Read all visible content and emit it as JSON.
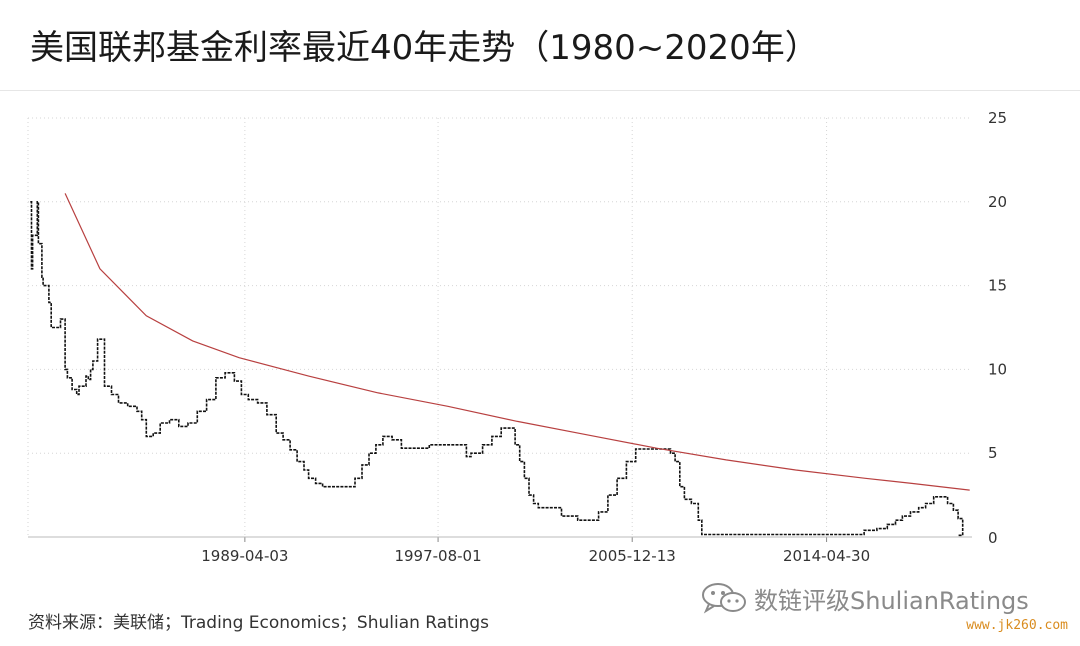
{
  "header": {
    "title": "美国联邦基金利率最近40年走势（1980~2020年）"
  },
  "chart_data": {
    "type": "line",
    "title": "",
    "xlabel": "",
    "ylabel": "",
    "x_tick_labels": [
      "1989-04-03",
      "1997-08-01",
      "2005-12-13",
      "2014-04-30"
    ],
    "x_tick_dates": [
      1989.25,
      1997.58,
      2005.95,
      2014.33
    ],
    "xlim": [
      1979.9,
      2020.6
    ],
    "y_ticks": [
      0,
      5,
      10,
      15,
      20,
      25
    ],
    "ylim": [
      0,
      25
    ],
    "grid": true,
    "y_axis_position": "right",
    "series": [
      {
        "name": "",
        "color": "#111111",
        "style": "step",
        "x": [
          1980.0,
          1980.05,
          1980.1,
          1980.3,
          1980.35,
          1980.5,
          1980.55,
          1980.8,
          1980.9,
          1981.3,
          1981.5,
          1981.6,
          1981.8,
          1982.0,
          1982.1,
          1982.4,
          1982.5,
          1982.6,
          1982.7,
          1982.9,
          1983.2,
          1983.5,
          1983.8,
          1984.2,
          1984.6,
          1984.8,
          1985.0,
          1985.3,
          1985.6,
          1986.0,
          1986.4,
          1986.8,
          1987.2,
          1987.6,
          1988.0,
          1988.4,
          1988.8,
          1989.1,
          1989.4,
          1989.8,
          1990.2,
          1990.6,
          1990.9,
          1991.2,
          1991.5,
          1991.8,
          1992.0,
          1992.3,
          1992.6,
          1993.2,
          1994.0,
          1994.3,
          1994.6,
          1994.9,
          1995.2,
          1995.6,
          1996.0,
          1996.6,
          1997.2,
          1998.0,
          1998.8,
          1999.0,
          1999.5,
          1999.9,
          2000.3,
          2000.5,
          2000.9,
          2001.1,
          2001.3,
          2001.5,
          2001.7,
          2001.9,
          2002.4,
          2002.9,
          2003.6,
          2004.2,
          2004.5,
          2004.9,
          2005.3,
          2005.7,
          2006.1,
          2006.5,
          2007.0,
          2007.6,
          2007.8,
          2008.0,
          2008.2,
          2008.5,
          2008.8,
          2008.95,
          2009.5,
          2012.0,
          2015.0,
          2015.95,
          2016.5,
          2016.95,
          2017.3,
          2017.6,
          2017.95,
          2018.3,
          2018.6,
          2018.95,
          2019.3,
          2019.55,
          2019.8,
          2020.0,
          2020.2
        ],
        "y": [
          20.0,
          16.0,
          18.0,
          20.0,
          17.5,
          15.5,
          15.0,
          14.0,
          12.5,
          13.0,
          10.0,
          9.5,
          8.8,
          8.5,
          9.0,
          9.6,
          9.4,
          10.0,
          10.5,
          11.8,
          9.0,
          8.5,
          8.0,
          7.8,
          7.5,
          7.0,
          6.0,
          6.2,
          6.8,
          7.0,
          6.6,
          6.8,
          7.5,
          8.2,
          9.5,
          9.8,
          9.3,
          8.5,
          8.2,
          8.0,
          7.3,
          6.2,
          5.8,
          5.2,
          4.5,
          4.0,
          3.5,
          3.2,
          3.0,
          3.0,
          3.5,
          4.3,
          5.0,
          5.5,
          6.0,
          5.8,
          5.3,
          5.3,
          5.5,
          5.5,
          4.8,
          5.0,
          5.5,
          6.0,
          6.5,
          6.5,
          5.5,
          4.5,
          3.5,
          2.5,
          2.0,
          1.75,
          1.75,
          1.25,
          1.0,
          1.0,
          1.5,
          2.5,
          3.5,
          4.5,
          5.25,
          5.25,
          5.25,
          5.0,
          4.5,
          3.0,
          2.25,
          2.0,
          1.0,
          0.15,
          0.15,
          0.15,
          0.15,
          0.4,
          0.5,
          0.75,
          1.0,
          1.25,
          1.5,
          1.75,
          2.0,
          2.4,
          2.4,
          2.0,
          1.6,
          1.1,
          0.1
        ]
      },
      {
        "name": "",
        "color": "#b84040",
        "style": "smooth",
        "x": [
          1981.5,
          1983.0,
          1985.0,
          1987.0,
          1989.0,
          1992.0,
          1995.0,
          1998.0,
          2001.0,
          2004.0,
          2007.0,
          2010.0,
          2013.0,
          2016.0,
          2018.0,
          2020.5
        ],
        "y": [
          20.5,
          16.0,
          13.2,
          11.7,
          10.7,
          9.6,
          8.6,
          7.8,
          6.9,
          6.1,
          5.3,
          4.6,
          4.0,
          3.5,
          3.2,
          2.8
        ]
      }
    ]
  },
  "footer": {
    "source": "资料来源：美联储；Trading Economics；Shulian Ratings",
    "watermark": "数链评级ShulianRatings",
    "site": "www.jk260.com"
  }
}
